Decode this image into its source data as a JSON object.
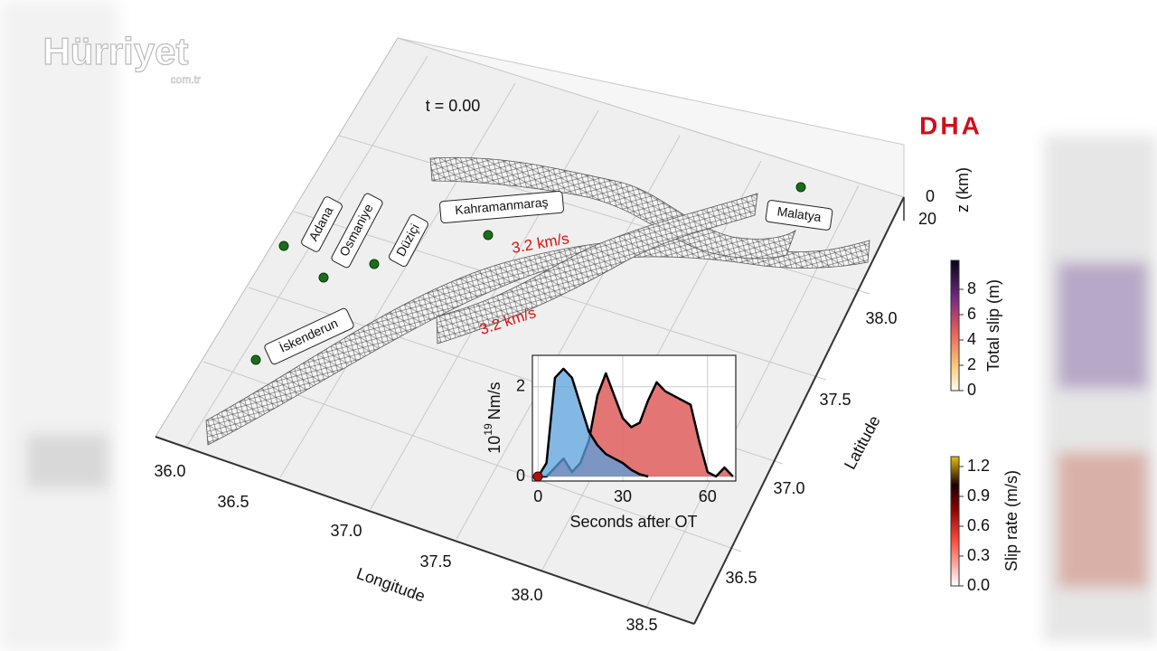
{
  "logos": {
    "hurriyet": "Hürriyet",
    "hurriyet_domain": "com.tr",
    "dha": "DHA"
  },
  "scene": {
    "time_label": "t = 0.00",
    "cities": [
      "Adana",
      "Osmaniye",
      "Düziçi",
      "Kahramanmaraş",
      "İskenderun",
      "Malatya"
    ],
    "rupture_speeds": [
      "3.2 km/s",
      "3.2 km/s"
    ],
    "longitude": {
      "label": "Longitude",
      "ticks": [
        "36.0",
        "36.5",
        "37.0",
        "37.5",
        "38.0",
        "38.5"
      ]
    },
    "latitude": {
      "label": "Latitude",
      "ticks": [
        "36.5",
        "37.0",
        "37.5",
        "38.0"
      ]
    },
    "depth": {
      "label": "z (km)",
      "ticks": [
        "0",
        "20"
      ]
    }
  },
  "colorbars": {
    "total_slip": {
      "label": "Total slip (m)",
      "ticks": [
        "0",
        "2",
        "4",
        "6",
        "8"
      ]
    },
    "slip_rate": {
      "label": "Slip rate (m/s)",
      "ticks": [
        "0.0",
        "0.3",
        "0.6",
        "0.9",
        "1.2"
      ]
    }
  },
  "chart_data": {
    "type": "area",
    "xlabel": "Seconds after OT",
    "ylabel": {
      "base": "10",
      "exp": "19",
      "unit": "Nm/s"
    },
    "x": [
      0,
      3,
      6,
      9,
      12,
      15,
      18,
      21,
      24,
      27,
      30,
      33,
      36,
      39,
      42,
      45,
      48,
      51,
      54,
      57,
      60,
      63,
      66,
      69
    ],
    "series": [
      {
        "color": "#e06666",
        "values": [
          0,
          0,
          0.2,
          0.4,
          0.1,
          0.3,
          0.8,
          1.8,
          2.3,
          1.8,
          1.3,
          1.1,
          1.2,
          1.7,
          2.1,
          1.9,
          1.8,
          1.7,
          1.6,
          0.8,
          0.1,
          0,
          0.2,
          0
        ]
      },
      {
        "color": "#5aa0dc",
        "values": [
          0,
          0.3,
          2.2,
          2.4,
          2.2,
          1.6,
          1.0,
          0.7,
          0.5,
          0.4,
          0.3,
          0.15,
          0.05,
          0,
          null,
          null,
          null,
          null,
          null,
          null,
          null,
          null,
          null,
          null
        ]
      }
    ],
    "xlim": [
      -2,
      70
    ],
    "ylim": [
      -0.1,
      2.7
    ],
    "xticks": [
      0,
      30,
      60
    ],
    "yticks": [
      0,
      2
    ],
    "grid": true
  }
}
